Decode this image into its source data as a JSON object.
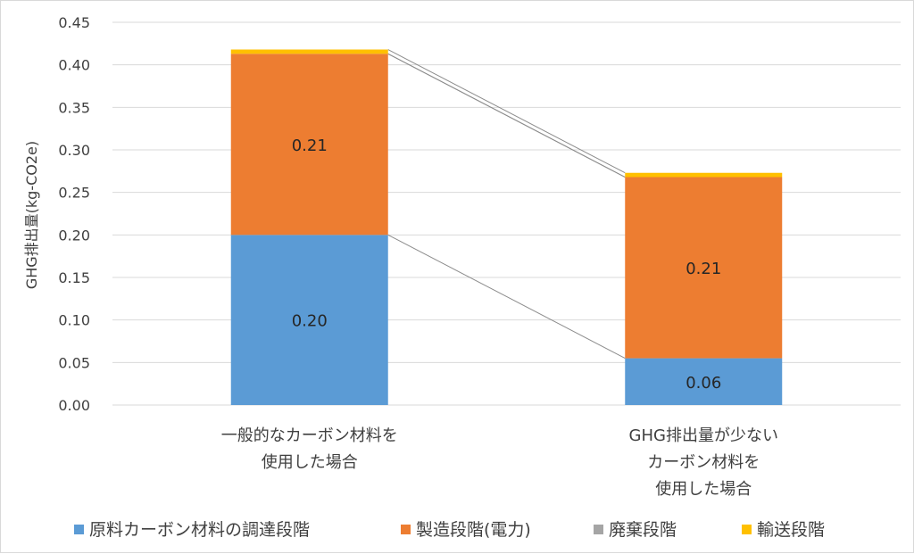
{
  "chart_data": {
    "type": "bar",
    "stacked": true,
    "title": "",
    "xlabel": "",
    "ylabel": "GHG排出量(kg-CO2e)",
    "ylim": [
      0,
      0.45
    ],
    "yticks": [
      "0.00",
      "0.05",
      "0.10",
      "0.15",
      "0.20",
      "0.25",
      "0.30",
      "0.35",
      "0.40",
      "0.45"
    ],
    "grid": true,
    "legend_position": "bottom",
    "categories": [
      [
        "一般的なカーボン材料を",
        "使用した場合"
      ],
      [
        "GHG排出量が少ない",
        "カーボン材料を",
        "使用した場合"
      ]
    ],
    "series": [
      {
        "name": "原料カーボン材料の調達段階",
        "color": "#5b9bd5",
        "values": [
          0.2,
          0.055
        ],
        "labels": [
          "0.20",
          "0.06"
        ]
      },
      {
        "name": "製造段階(電力)",
        "color": "#ed7d31",
        "values": [
          0.213,
          0.213
        ],
        "labels": [
          "0.21",
          "0.21"
        ]
      },
      {
        "name": "廃棄段階",
        "color": "#a5a5a5",
        "values": [
          0.0,
          0.0
        ],
        "labels": [
          "",
          ""
        ]
      },
      {
        "name": "輸送段階",
        "color": "#ffc000",
        "values": [
          0.005,
          0.005
        ],
        "labels": [
          "",
          ""
        ]
      }
    ]
  }
}
